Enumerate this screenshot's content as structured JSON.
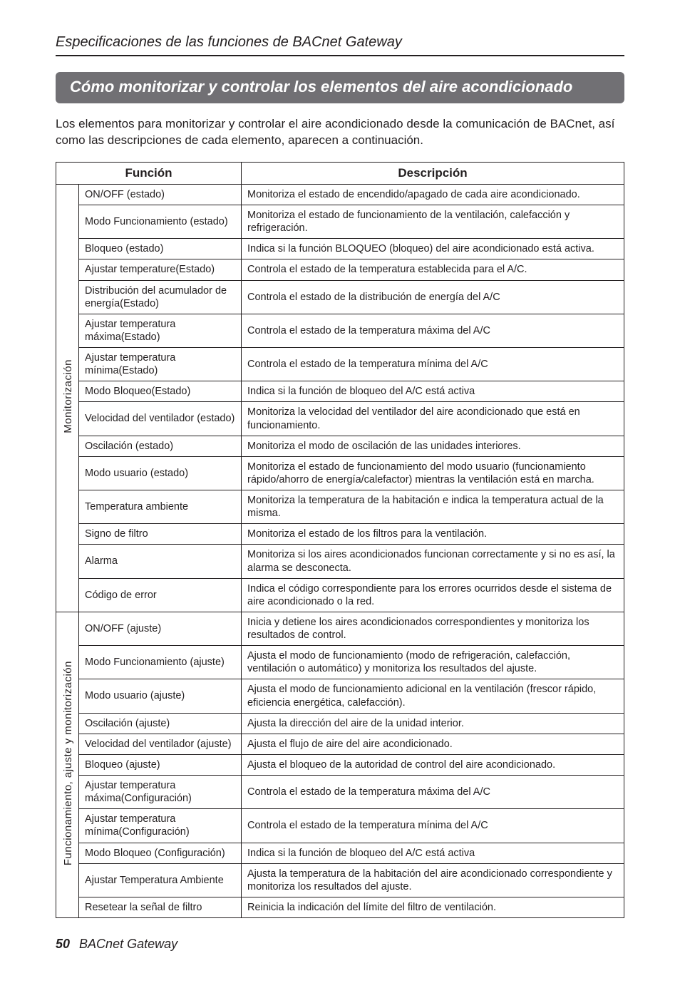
{
  "section_header": "Especificaciones de las funciones de BACnet Gateway",
  "title_banner": "Cómo monitorizar y controlar los elementos del aire acondicionado",
  "intro": "Los elementos para monitorizar y controlar el aire acondicionado desde la comunicación de BACnet, así como las descripciones de cada elemento, aparecen a continuación.",
  "table": {
    "headers": {
      "function": "Función",
      "description": "Descripción"
    },
    "groups": [
      {
        "label": "Monitorización",
        "rows": [
          {
            "fn": "ON/OFF (estado)",
            "desc": "Monitoriza el estado de encendido/apagado de cada aire acondicionado."
          },
          {
            "fn": "Modo Funcionamiento (estado)",
            "desc": "Monitoriza el estado de funcionamiento de la ventilación, calefacción y refrigeración."
          },
          {
            "fn": "Bloqueo (estado)",
            "desc": "Indica si la función BLOQUEO (bloqueo) del aire acondicionado está activa."
          },
          {
            "fn": "Ajustar temperature(Estado)",
            "desc": "Controla el estado de la temperatura establecida para el A/C."
          },
          {
            "fn": "Distribución del acumulador de energía(Estado)",
            "desc": "Controla el estado de la distribución de energía del A/C"
          },
          {
            "fn": "Ajustar temperatura máxima(Estado)",
            "desc": "Controla el estado de la temperatura máxima del A/C"
          },
          {
            "fn": "Ajustar temperatura mínima(Estado)",
            "desc": "Controla el estado de la temperatura mínima del A/C"
          },
          {
            "fn": "Modo Bloqueo(Estado)",
            "desc": "Indica si la función de bloqueo del A/C está activa"
          },
          {
            "fn": "Velocidad del ventilador (estado)",
            "desc": "Monitoriza la velocidad del ventilador del aire acondicionado que está en funcionamiento."
          },
          {
            "fn": "Oscilación (estado)",
            "desc": "Monitoriza el modo de oscilación de las unidades interiores."
          },
          {
            "fn": "Modo usuario (estado)",
            "desc": "Monitoriza el estado de funcionamiento del modo usuario (funcionamiento rápido/ahorro de energía/calefactor) mientras la ventilación está en marcha."
          },
          {
            "fn": "Temperatura ambiente",
            "desc": "Monitoriza la temperatura de la habitación e indica la temperatura actual de la misma."
          },
          {
            "fn": "Signo de filtro",
            "desc": "Monitoriza el estado de los filtros para la ventilación."
          },
          {
            "fn": "Alarma",
            "desc": "Monitoriza si los aires acondicionados funcionan correctamente y si no es así, la alarma se desconecta."
          },
          {
            "fn": "Código de error",
            "desc": "Indica el código correspondiente para los errores ocurridos desde el sistema de aire acondicionado o la red."
          }
        ]
      },
      {
        "label": "Funcionamiento, ajuste y monitorización",
        "rows": [
          {
            "fn": "ON/OFF (ajuste)",
            "desc": "Inicia y detiene los aires acondicionados correspondientes y monitoriza los resultados de control."
          },
          {
            "fn": "Modo Funcionamiento (ajuste)",
            "desc": "Ajusta el modo de funcionamiento (modo de refrigeración, calefacción, ventilación o automático) y monitoriza los resultados del ajuste."
          },
          {
            "fn": "Modo usuario (ajuste)",
            "desc": "Ajusta el modo de funcionamiento adicional en la ventilación (frescor rápido, eficiencia energética, calefacción)."
          },
          {
            "fn": "Oscilación (ajuste)",
            "desc": "Ajusta la dirección del aire de la unidad interior."
          },
          {
            "fn": "Velocidad del ventilador (ajuste)",
            "desc": "Ajusta el flujo de aire del aire acondicionado."
          },
          {
            "fn": "Bloqueo (ajuste)",
            "desc": "Ajusta el bloqueo de la autoridad de control del aire acondicionado."
          },
          {
            "fn": "Ajustar temperatura máxima(Configuración)",
            "desc": "Controla el estado de la temperatura máxima del A/C"
          },
          {
            "fn": "Ajustar temperatura mínima(Configuración)",
            "desc": "Controla el estado de la temperatura mínima del A/C"
          },
          {
            "fn": "Modo Bloqueo (Configuración)",
            "desc": "Indica si la función de bloqueo del A/C está activa"
          },
          {
            "fn": "Ajustar Temperatura Ambiente",
            "desc": "Ajusta la temperatura de la habitación del aire acondicionado correspondiente y monitoriza los resultados del ajuste."
          },
          {
            "fn": "Resetear la señal de filtro",
            "desc": "Reinicia la indicación del límite del filtro de ventilación."
          }
        ]
      }
    ]
  },
  "footer": {
    "page_number": "50",
    "text": "BACnet Gateway"
  }
}
